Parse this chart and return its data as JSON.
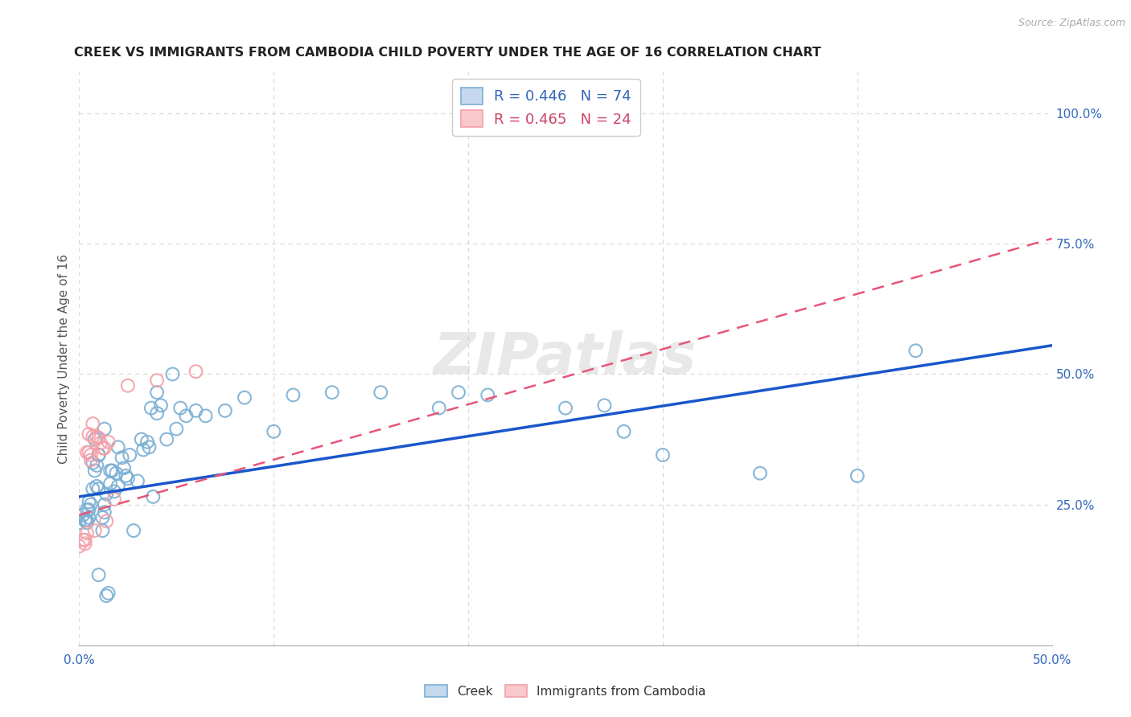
{
  "title": "CREEK VS IMMIGRANTS FROM CAMBODIA CHILD POVERTY UNDER THE AGE OF 16 CORRELATION CHART",
  "source": "Source: ZipAtlas.com",
  "ylabel": "Child Poverty Under the Age of 16",
  "xlim": [
    0.0,
    0.5
  ],
  "ylim": [
    -0.02,
    1.08
  ],
  "yticks_right": [
    0.25,
    0.5,
    0.75,
    1.0
  ],
  "yticklabels_right": [
    "25.0%",
    "50.0%",
    "75.0%",
    "100.0%"
  ],
  "legend_creek_R": "R = 0.446",
  "legend_creek_N": "N = 74",
  "legend_camb_R": "R = 0.465",
  "legend_camb_N": "N = 24",
  "creek_color": "#7BAFD4",
  "camb_color": "#F4A0A8",
  "creek_line_color": "#1A56CC",
  "camb_line_color": "#E85577",
  "watermark": "ZIPatlas",
  "background_color": "#ffffff",
  "grid_color": "#d8d8d8",
  "title_color": "#222222",
  "creek_scatter": [
    [
      0.0,
      0.215
    ],
    [
      0.002,
      0.23
    ],
    [
      0.003,
      0.22
    ],
    [
      0.004,
      0.215
    ],
    [
      0.004,
      0.24
    ],
    [
      0.004,
      0.22
    ],
    [
      0.005,
      0.225
    ],
    [
      0.005,
      0.24
    ],
    [
      0.005,
      0.255
    ],
    [
      0.006,
      0.25
    ],
    [
      0.007,
      0.33
    ],
    [
      0.007,
      0.28
    ],
    [
      0.008,
      0.375
    ],
    [
      0.008,
      0.315
    ],
    [
      0.009,
      0.285
    ],
    [
      0.009,
      0.325
    ],
    [
      0.01,
      0.28
    ],
    [
      0.01,
      0.345
    ],
    [
      0.01,
      0.345
    ],
    [
      0.01,
      0.115
    ],
    [
      0.012,
      0.2
    ],
    [
      0.012,
      0.225
    ],
    [
      0.013,
      0.235
    ],
    [
      0.013,
      0.25
    ],
    [
      0.013,
      0.395
    ],
    [
      0.014,
      0.075
    ],
    [
      0.014,
      0.27
    ],
    [
      0.015,
      0.08
    ],
    [
      0.016,
      0.29
    ],
    [
      0.016,
      0.315
    ],
    [
      0.017,
      0.315
    ],
    [
      0.018,
      0.275
    ],
    [
      0.019,
      0.31
    ],
    [
      0.02,
      0.285
    ],
    [
      0.02,
      0.36
    ],
    [
      0.022,
      0.34
    ],
    [
      0.023,
      0.32
    ],
    [
      0.024,
      0.305
    ],
    [
      0.025,
      0.3
    ],
    [
      0.026,
      0.345
    ],
    [
      0.028,
      0.2
    ],
    [
      0.03,
      0.295
    ],
    [
      0.032,
      0.375
    ],
    [
      0.033,
      0.355
    ],
    [
      0.035,
      0.37
    ],
    [
      0.036,
      0.36
    ],
    [
      0.037,
      0.435
    ],
    [
      0.038,
      0.265
    ],
    [
      0.04,
      0.425
    ],
    [
      0.04,
      0.465
    ],
    [
      0.042,
      0.44
    ],
    [
      0.045,
      0.375
    ],
    [
      0.048,
      0.5
    ],
    [
      0.05,
      0.395
    ],
    [
      0.052,
      0.435
    ],
    [
      0.055,
      0.42
    ],
    [
      0.06,
      0.43
    ],
    [
      0.065,
      0.42
    ],
    [
      0.075,
      0.43
    ],
    [
      0.085,
      0.455
    ],
    [
      0.1,
      0.39
    ],
    [
      0.11,
      0.46
    ],
    [
      0.13,
      0.465
    ],
    [
      0.155,
      0.465
    ],
    [
      0.185,
      0.435
    ],
    [
      0.195,
      0.465
    ],
    [
      0.21,
      0.46
    ],
    [
      0.25,
      0.435
    ],
    [
      0.27,
      0.44
    ],
    [
      0.28,
      0.39
    ],
    [
      0.3,
      0.345
    ],
    [
      0.35,
      0.31
    ],
    [
      0.4,
      0.305
    ],
    [
      0.43,
      0.545
    ]
  ],
  "camb_scatter": [
    [
      0.0,
      0.17
    ],
    [
      0.002,
      0.182
    ],
    [
      0.003,
      0.175
    ],
    [
      0.003,
      0.182
    ],
    [
      0.004,
      0.195
    ],
    [
      0.004,
      0.35
    ],
    [
      0.005,
      0.35
    ],
    [
      0.005,
      0.385
    ],
    [
      0.006,
      0.335
    ],
    [
      0.006,
      0.345
    ],
    [
      0.007,
      0.38
    ],
    [
      0.007,
      0.405
    ],
    [
      0.008,
      0.2
    ],
    [
      0.009,
      0.38
    ],
    [
      0.01,
      0.378
    ],
    [
      0.011,
      0.368
    ],
    [
      0.012,
      0.358
    ],
    [
      0.013,
      0.358
    ],
    [
      0.014,
      0.218
    ],
    [
      0.015,
      0.37
    ],
    [
      0.018,
      0.26
    ],
    [
      0.025,
      0.478
    ],
    [
      0.04,
      0.488
    ],
    [
      0.06,
      0.505
    ]
  ],
  "creek_trendline": [
    [
      0.0,
      0.265
    ],
    [
      0.5,
      0.555
    ]
  ],
  "camb_trendline": [
    [
      0.0,
      0.23
    ],
    [
      0.5,
      0.76
    ]
  ]
}
